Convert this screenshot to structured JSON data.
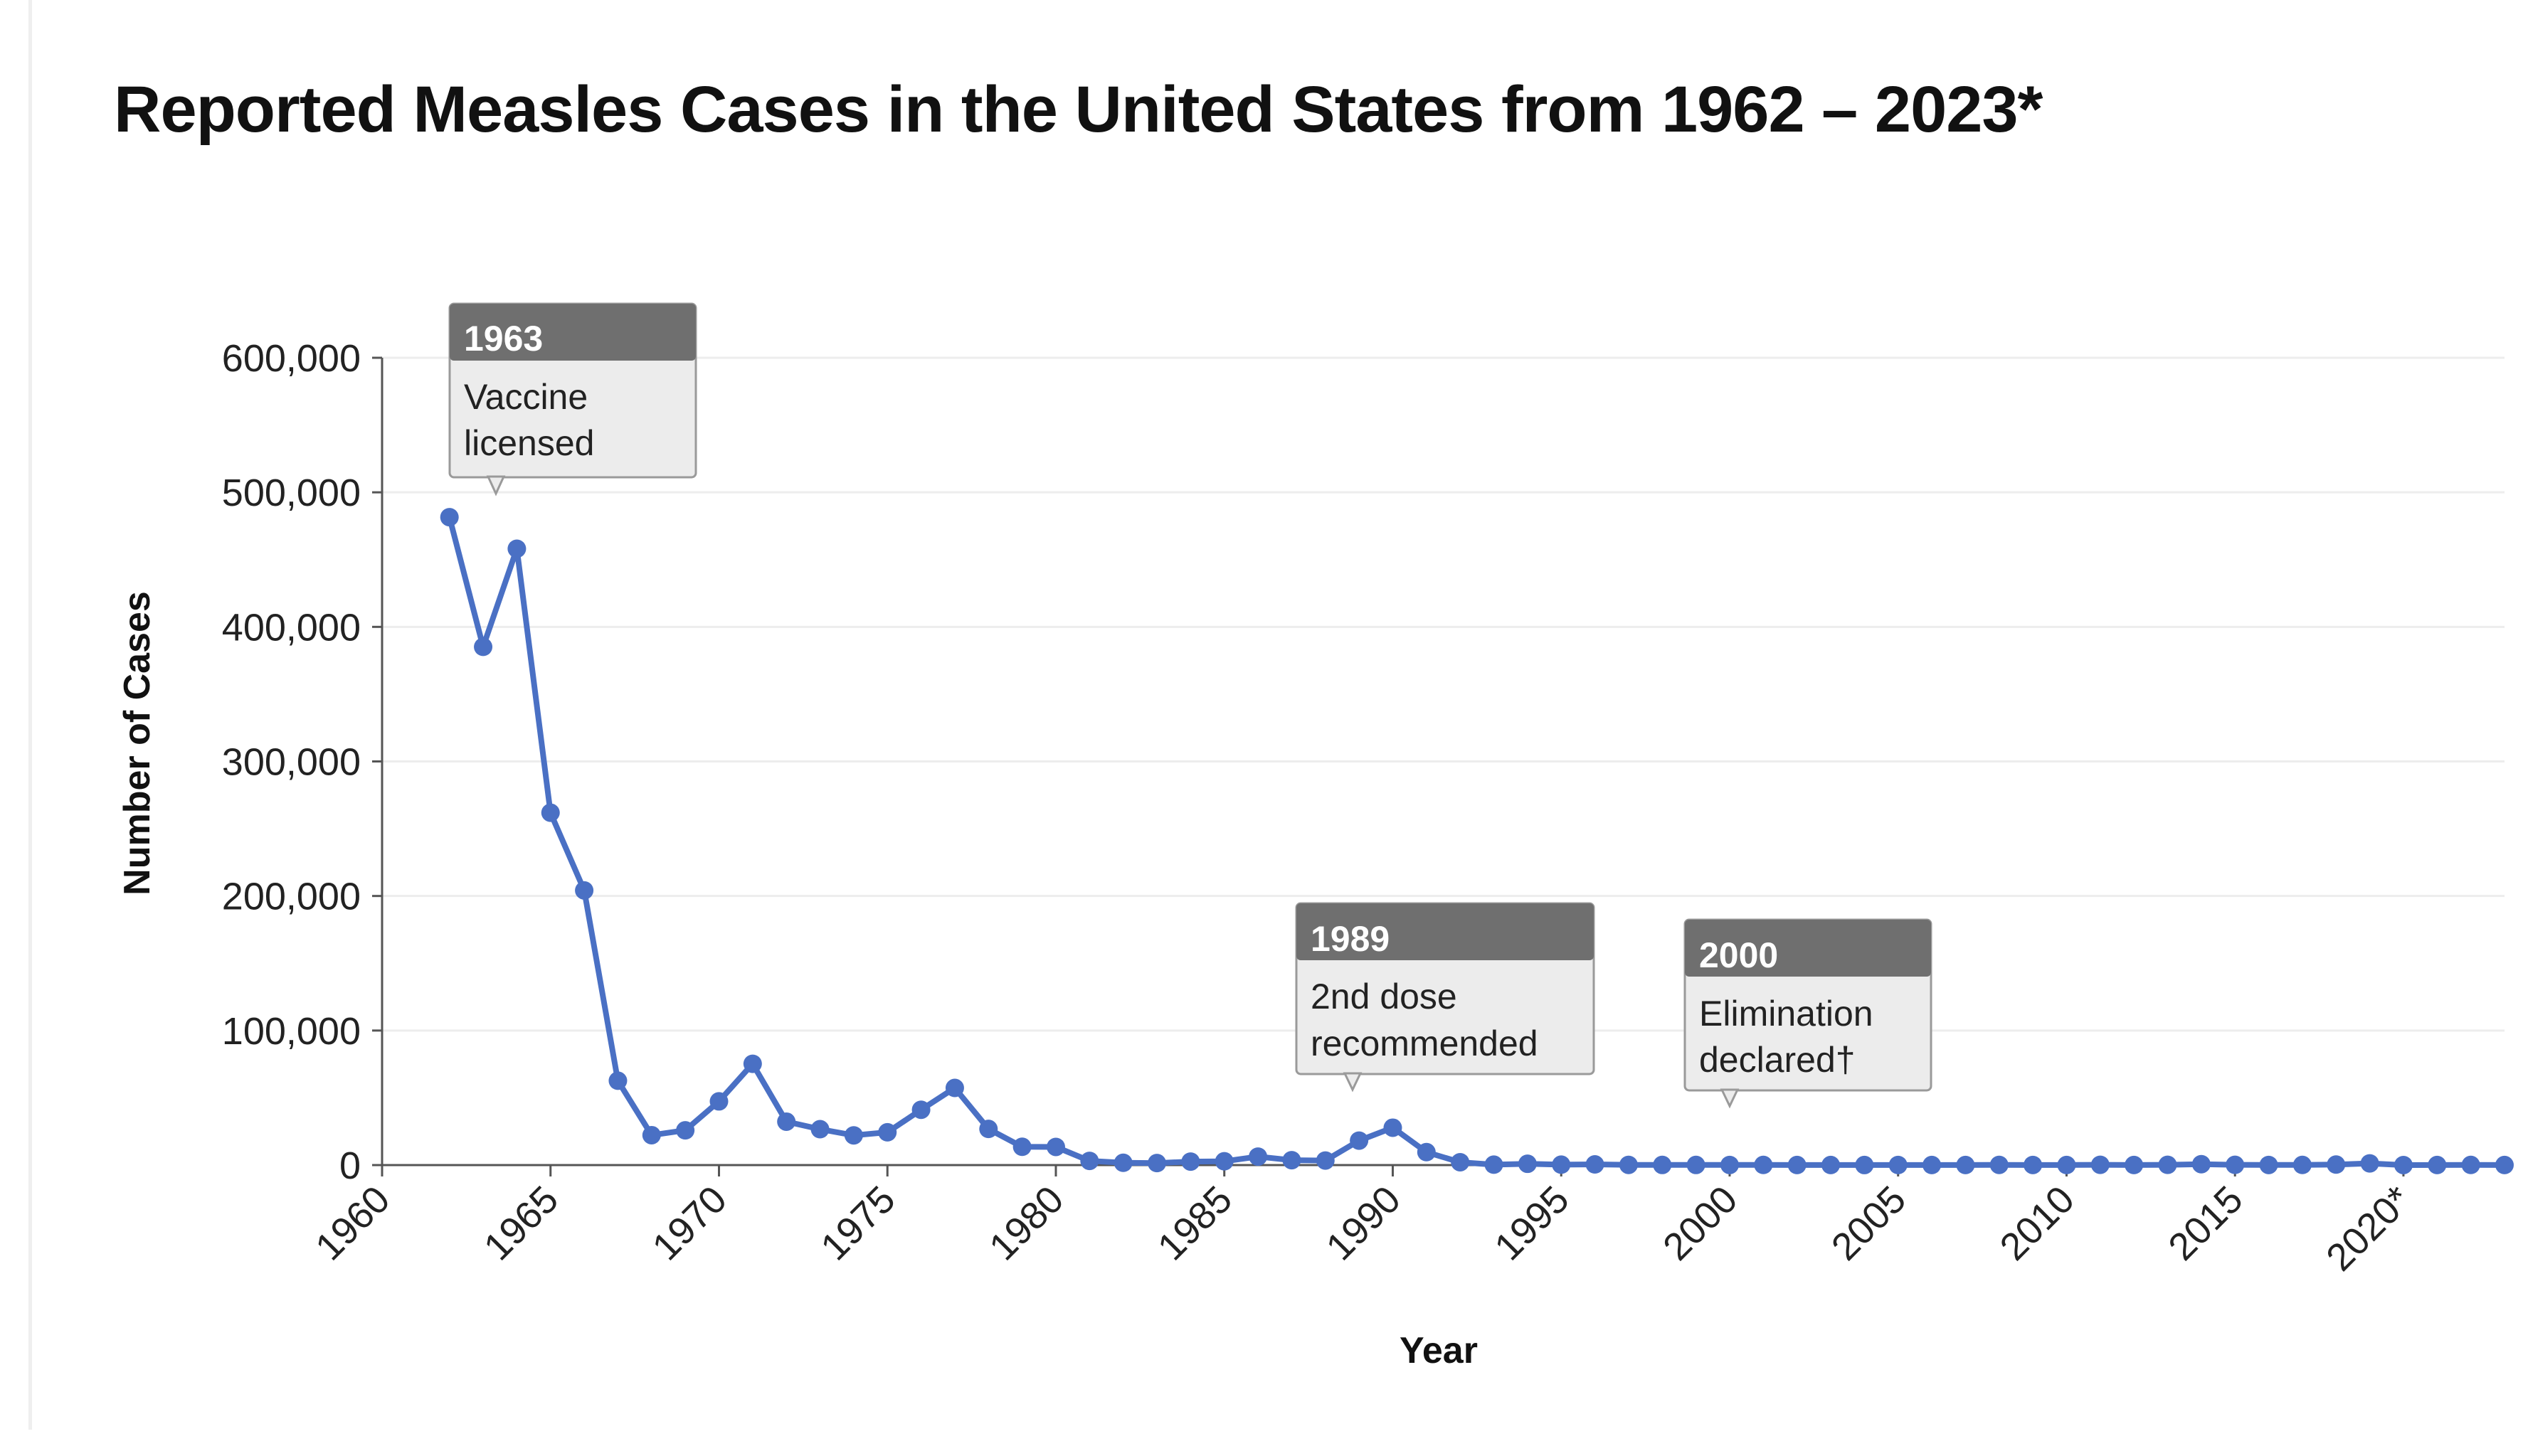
{
  "title": "Reported Measles Cases in the United States from 1962 – 2023*",
  "chart_data": {
    "type": "line",
    "title": "Reported Measles Cases in the United States from 1962 – 2023*",
    "xlabel": "Year",
    "ylabel": "Number of Cases",
    "xlim": [
      1960,
      2023
    ],
    "ylim": [
      0,
      600000
    ],
    "grid": true,
    "color": "#4a70c4",
    "y_ticks": [
      {
        "value": 0,
        "label": "0"
      },
      {
        "value": 100000,
        "label": "100,000"
      },
      {
        "value": 200000,
        "label": "200,000"
      },
      {
        "value": 300000,
        "label": "300,000"
      },
      {
        "value": 400000,
        "label": "400,000"
      },
      {
        "value": 500000,
        "label": "500,000"
      },
      {
        "value": 600000,
        "label": "600,000"
      }
    ],
    "x_ticks": [
      {
        "value": 1960,
        "label": "1960"
      },
      {
        "value": 1965,
        "label": "1965"
      },
      {
        "value": 1970,
        "label": "1970"
      },
      {
        "value": 1975,
        "label": "1975"
      },
      {
        "value": 1980,
        "label": "1980"
      },
      {
        "value": 1985,
        "label": "1985"
      },
      {
        "value": 1990,
        "label": "1990"
      },
      {
        "value": 1995,
        "label": "1995"
      },
      {
        "value": 2000,
        "label": "2000"
      },
      {
        "value": 2005,
        "label": "2005"
      },
      {
        "value": 2010,
        "label": "2010"
      },
      {
        "value": 2015,
        "label": "2015"
      },
      {
        "value": 2020,
        "label": "2020*"
      }
    ],
    "x": [
      1962,
      1963,
      1964,
      1965,
      1966,
      1967,
      1968,
      1969,
      1970,
      1971,
      1972,
      1973,
      1974,
      1975,
      1976,
      1977,
      1978,
      1979,
      1980,
      1981,
      1982,
      1983,
      1984,
      1985,
      1986,
      1987,
      1988,
      1989,
      1990,
      1991,
      1992,
      1993,
      1994,
      1995,
      1996,
      1997,
      1998,
      1999,
      2000,
      2001,
      2002,
      2003,
      2004,
      2005,
      2006,
      2007,
      2008,
      2009,
      2010,
      2011,
      2012,
      2013,
      2014,
      2015,
      2016,
      2017,
      2018,
      2019,
      2020,
      2021,
      2022,
      2023
    ],
    "values": [
      481530,
      385156,
      458083,
      261904,
      204136,
      62705,
      22231,
      25826,
      47351,
      75290,
      32275,
      26690,
      22094,
      24374,
      41126,
      57345,
      26871,
      13597,
      13506,
      3124,
      1714,
      1497,
      2587,
      2822,
      6282,
      3655,
      3396,
      18193,
      27786,
      9643,
      2126,
      312,
      963,
      309,
      508,
      138,
      100,
      100,
      86,
      116,
      44,
      56,
      37,
      66,
      55,
      43,
      140,
      71,
      63,
      220,
      55,
      187,
      667,
      188,
      86,
      120,
      375,
      1282,
      13,
      49,
      121,
      59
    ]
  },
  "annotations": [
    {
      "year": "1963",
      "line1": "Vaccine",
      "line2": "licensed"
    },
    {
      "year": "1989",
      "line1": "2nd dose",
      "line2": "recommended"
    },
    {
      "year": "2000",
      "line1": "Elimination",
      "line2": "declared†"
    }
  ]
}
